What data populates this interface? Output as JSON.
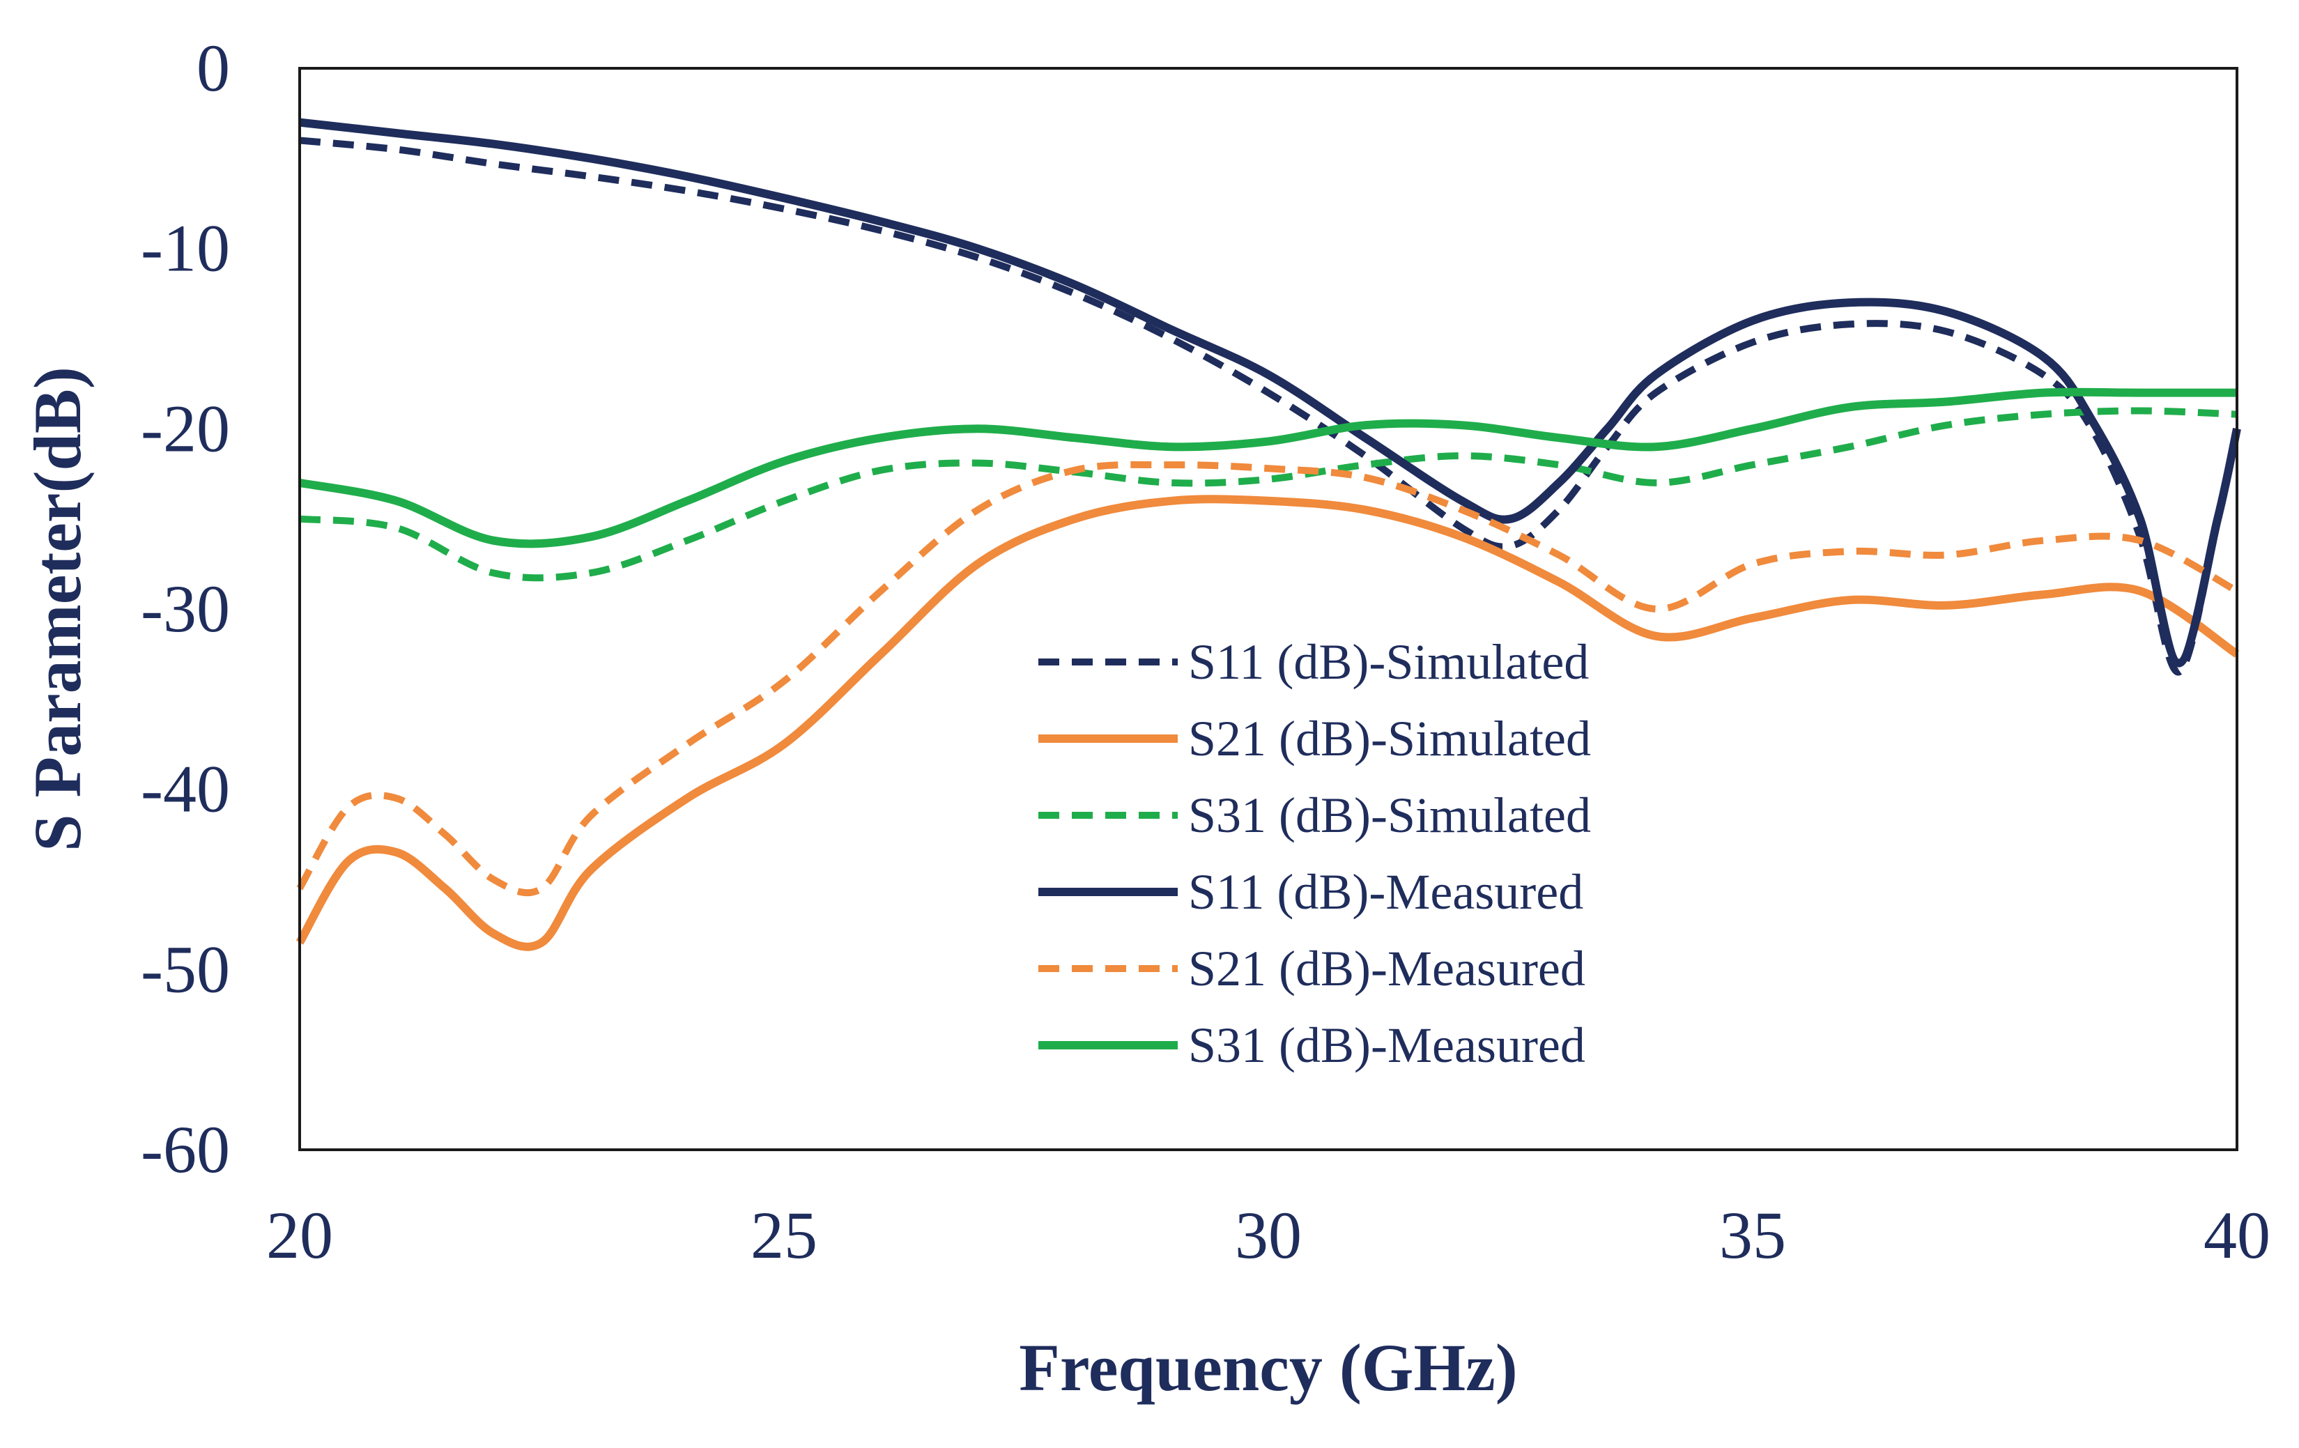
{
  "chart_data": {
    "type": "line",
    "title": "",
    "xlabel": "Frequency (GHz)",
    "ylabel": "S Parameter(dB)",
    "xlim": [
      20,
      40
    ],
    "ylim": [
      -60,
      0
    ],
    "xticks": [
      20,
      25,
      30,
      35,
      40
    ],
    "yticks": [
      0,
      -10,
      -20,
      -30,
      -40,
      -50,
      -60
    ],
    "xtick_labels": [
      "20",
      "25",
      "30",
      "35",
      "40"
    ],
    "ytick_labels": [
      "0",
      "-10",
      "-20",
      "-30",
      "-40",
      "-50",
      "-60"
    ],
    "grid": false,
    "legend_position": "center-right",
    "series": [
      {
        "name": "S11 (dB)-Simulated",
        "color": "#1f2d5c",
        "style": "dashed",
        "x": [
          20,
          21,
          22,
          23,
          24,
          25,
          26,
          27,
          28,
          29,
          30,
          31,
          32,
          32.5,
          33,
          33.5,
          34,
          35,
          36,
          37,
          38,
          38.5,
          39,
          39.4,
          39.8,
          40
        ],
        "y": [
          -4,
          -4.5,
          -5.3,
          -6,
          -6.8,
          -7.8,
          -9,
          -10.5,
          -12.5,
          -15,
          -18,
          -21.5,
          -25.5,
          -26.5,
          -24.5,
          -21,
          -18,
          -15.2,
          -14.2,
          -14.6,
          -17,
          -20,
          -26,
          -33.5,
          -25,
          -20
        ]
      },
      {
        "name": "S21 (dB)-Simulated",
        "color": "#f08a3c",
        "style": "solid",
        "x": [
          20,
          20.5,
          21,
          21.5,
          22,
          22.5,
          23,
          24,
          25,
          26,
          27,
          28,
          29,
          30,
          31,
          32,
          33,
          34,
          35,
          36,
          37,
          38,
          39,
          40
        ],
        "y": [
          -48.5,
          -44,
          -43.5,
          -45.5,
          -48,
          -48.5,
          -44.5,
          -40.5,
          -37.5,
          -32.5,
          -27.5,
          -25,
          -24,
          -24,
          -24.5,
          -26,
          -28.5,
          -31.5,
          -30.5,
          -29.5,
          -29.8,
          -29.2,
          -29,
          -32.5
        ]
      },
      {
        "name": "S31 (dB)-Simulated",
        "color": "#1fad4b",
        "style": "dashed",
        "x": [
          20,
          21,
          22,
          23,
          24,
          25,
          26,
          27,
          28,
          29,
          30,
          31,
          32,
          33,
          34,
          35,
          36,
          37,
          38,
          39,
          40
        ],
        "y": [
          -25,
          -25.5,
          -28,
          -28,
          -26.2,
          -24,
          -22.3,
          -21.9,
          -22.4,
          -23,
          -22.8,
          -22,
          -21.5,
          -22,
          -23,
          -22,
          -21,
          -19.8,
          -19.2,
          -19,
          -19.2
        ]
      },
      {
        "name": "S11 (dB)-Measured",
        "color": "#1f2d5c",
        "style": "solid",
        "x": [
          20,
          21,
          22,
          23,
          24,
          25,
          26,
          27,
          28,
          29,
          30,
          31,
          32,
          32.5,
          33,
          33.5,
          34,
          35,
          36,
          37,
          38,
          38.5,
          39,
          39.4,
          39.8,
          40
        ],
        "y": [
          -3,
          -3.6,
          -4.2,
          -5,
          -6,
          -7.2,
          -8.5,
          -10,
          -12,
          -14.5,
          -17,
          -20.5,
          -24,
          -25,
          -23,
          -20,
          -17,
          -14,
          -13,
          -13.5,
          -16,
          -19.5,
          -25,
          -33,
          -25,
          -20
        ]
      },
      {
        "name": "S21 (dB)-Measured",
        "color": "#f08a3c",
        "style": "dashed",
        "x": [
          20,
          20.5,
          21,
          21.5,
          22,
          22.5,
          23,
          24,
          25,
          26,
          27,
          28,
          29,
          30,
          31,
          32,
          33,
          34,
          35,
          36,
          37,
          38,
          39,
          40
        ],
        "y": [
          -45.5,
          -41,
          -40.5,
          -42.5,
          -45,
          -45.5,
          -41.5,
          -37.5,
          -34,
          -29,
          -24.5,
          -22.3,
          -22,
          -22.2,
          -22.7,
          -24.5,
          -27,
          -30,
          -27.5,
          -26.8,
          -27,
          -26.2,
          -26.2,
          -29
        ]
      },
      {
        "name": "S31 (dB)-Measured",
        "color": "#1fad4b",
        "style": "solid",
        "x": [
          20,
          21,
          22,
          23,
          24,
          25,
          26,
          27,
          28,
          29,
          30,
          31,
          32,
          33,
          34,
          35,
          36,
          37,
          38,
          39,
          40
        ],
        "y": [
          -23,
          -24,
          -26.2,
          -26,
          -24,
          -21.8,
          -20.5,
          -20,
          -20.5,
          -21,
          -20.7,
          -19.8,
          -19.8,
          -20.5,
          -21,
          -20,
          -18.8,
          -18.5,
          -18,
          -18,
          -18
        ]
      }
    ]
  }
}
